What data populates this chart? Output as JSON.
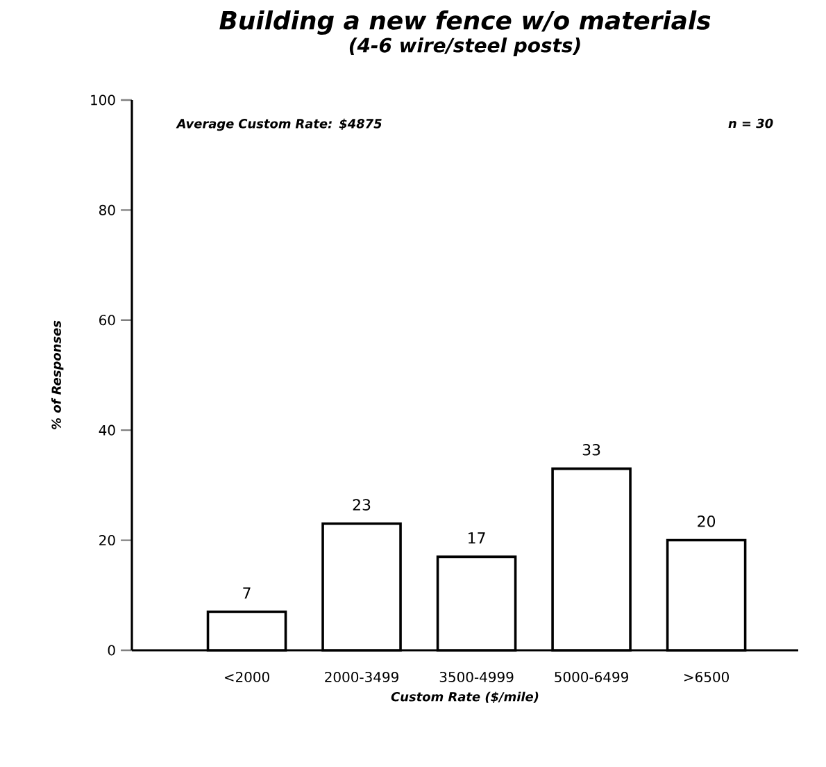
{
  "chart_data": {
    "type": "bar",
    "title": "Building a new fence w/o materials",
    "subtitle": "(4-6 wire/steel posts)",
    "xlabel": "Custom Rate ($/mile)",
    "ylabel": "% of Responses",
    "categories": [
      "<2000",
      "2000-3499",
      "3500-4999",
      "5000-6499",
      ">6500"
    ],
    "values": [
      7,
      23,
      17,
      33,
      20
    ],
    "color": "#ffffff",
    "data_labels": true,
    "ylim": [
      0,
      100
    ],
    "yticks": [
      0,
      20,
      40,
      60,
      80,
      100
    ],
    "annotations": [
      "Average Custom Rate: $4875",
      "n = 30"
    ]
  }
}
